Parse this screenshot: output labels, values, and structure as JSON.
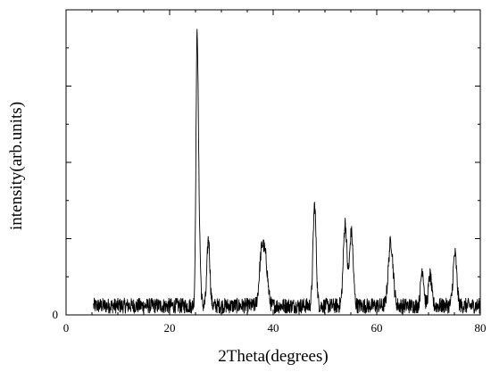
{
  "chart_data": {
    "type": "line",
    "title": "",
    "xlabel": "2Theta(degrees)",
    "ylabel": "intensity(arb.units)",
    "xlim": [
      0,
      80
    ],
    "ylim": [
      0,
      1
    ],
    "x_ticks": [
      0,
      20,
      40,
      60,
      80
    ],
    "x_tick_labels": [
      "0",
      "20",
      "40",
      "60",
      "80"
    ],
    "y_ticks": [
      0
    ],
    "y_tick_labels": [
      "0"
    ],
    "grid": false,
    "legend": "none",
    "series": [
      {
        "color": "#000000",
        "x_range": [
          5.3,
          80
        ],
        "baseline": 0.03,
        "noise_amplitude": 0.025,
        "peaks": [
          {
            "x": 25.3,
            "height": 0.83,
            "width": 0.22
          },
          {
            "x": 25.7,
            "height": 0.22,
            "width": 0.25
          },
          {
            "x": 27.5,
            "height": 0.22,
            "width": 0.28
          },
          {
            "x": 37.8,
            "height": 0.18,
            "width": 0.45
          },
          {
            "x": 38.6,
            "height": 0.12,
            "width": 0.4
          },
          {
            "x": 48.0,
            "height": 0.33,
            "width": 0.3
          },
          {
            "x": 53.9,
            "height": 0.27,
            "width": 0.35
          },
          {
            "x": 55.1,
            "height": 0.24,
            "width": 0.35
          },
          {
            "x": 62.7,
            "height": 0.21,
            "width": 0.45
          },
          {
            "x": 68.8,
            "height": 0.12,
            "width": 0.3
          },
          {
            "x": 70.3,
            "height": 0.1,
            "width": 0.3
          },
          {
            "x": 75.1,
            "height": 0.17,
            "width": 0.35
          }
        ]
      }
    ]
  }
}
